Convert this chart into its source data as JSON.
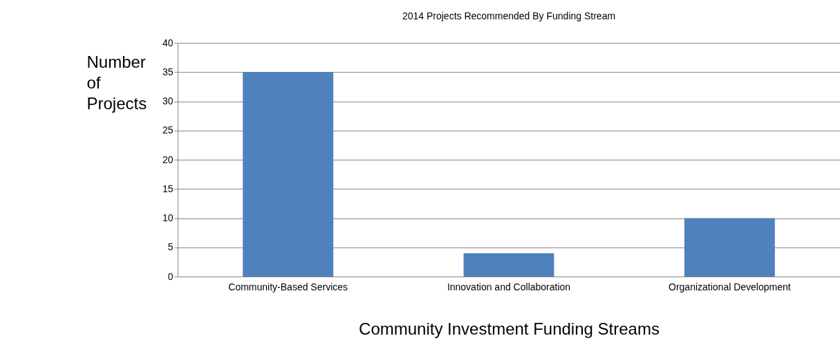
{
  "chart_data": {
    "type": "bar",
    "title": "2014 Projects Recommended By Funding Stream",
    "xlabel": "Community Investment Funding Streams",
    "ylabel": "Number of Projects",
    "categories": [
      "Community-Based Services",
      "Innovation and Collaboration",
      "Organizational Development"
    ],
    "values": [
      35,
      4,
      10
    ],
    "color": "#4f81bd",
    "ylim": [
      0,
      40
    ],
    "yticks": [
      0,
      5,
      10,
      15,
      20,
      25,
      30,
      35,
      40
    ],
    "grid": "y"
  }
}
